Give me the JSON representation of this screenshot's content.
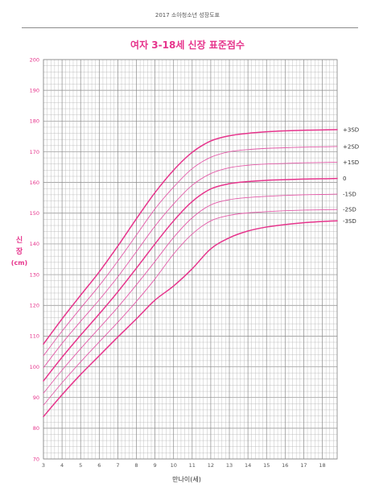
{
  "header": {
    "doc_title": "2017 소아청소년 성장도표"
  },
  "colors": {
    "accent": "#e6348c",
    "line_light": "#e35aa8",
    "grid": "#b4b4b4",
    "grid_major": "#8a8a8a",
    "axis_text": "#555555"
  },
  "chart_data": {
    "type": "line",
    "title": "여자 3-18세 신장 표준점수",
    "xlabel": "만나이(세)",
    "ylabel": "신장 (cm)",
    "ylabel_lines": [
      "신",
      "장",
      "(cm)"
    ],
    "xlim": [
      3,
      18.8
    ],
    "ylim": [
      70,
      200
    ],
    "xticks": [
      3,
      4,
      5,
      6,
      7,
      8,
      9,
      10,
      11,
      12,
      13,
      14,
      15,
      16,
      17,
      18
    ],
    "yticks": [
      70,
      80,
      90,
      100,
      110,
      120,
      130,
      140,
      150,
      160,
      170,
      180,
      190,
      200
    ],
    "grid": true,
    "series": [
      {
        "name": "+3SD",
        "emphasis": true,
        "x": [
          3,
          4,
          5,
          6,
          7,
          8,
          9,
          10,
          11,
          12,
          13,
          14,
          15,
          16,
          17,
          18,
          18.8
        ],
        "values": [
          107.4,
          115.6,
          123.3,
          130.9,
          139.3,
          148.2,
          156.7,
          164.0,
          169.8,
          173.5,
          175.2,
          176.0,
          176.5,
          176.8,
          177.0,
          177.1,
          177.2
        ]
      },
      {
        "name": "+2SD",
        "emphasis": false,
        "x": [
          3,
          4,
          5,
          6,
          7,
          8,
          9,
          10,
          11,
          12,
          13,
          14,
          15,
          16,
          17,
          18,
          18.8
        ],
        "values": [
          103.6,
          111.6,
          119.1,
          126.4,
          134.4,
          142.9,
          151.4,
          158.5,
          164.5,
          168.2,
          170.0,
          170.7,
          171.1,
          171.3,
          171.5,
          171.6,
          171.7
        ]
      },
      {
        "name": "+1SD",
        "emphasis": false,
        "x": [
          3,
          4,
          5,
          6,
          7,
          8,
          9,
          10,
          11,
          12,
          13,
          14,
          15,
          16,
          17,
          18,
          18.8
        ],
        "values": [
          99.7,
          107.6,
          114.8,
          121.8,
          129.3,
          137.5,
          145.8,
          153.0,
          159.1,
          162.9,
          164.8,
          165.6,
          166.0,
          166.2,
          166.4,
          166.5,
          166.6
        ]
      },
      {
        "name": "0",
        "emphasis": true,
        "x": [
          3,
          4,
          5,
          6,
          7,
          8,
          9,
          10,
          11,
          12,
          13,
          14,
          15,
          16,
          17,
          18,
          18.8
        ],
        "values": [
          95.4,
          103.1,
          110.3,
          117.2,
          124.4,
          132.1,
          140.0,
          147.5,
          153.8,
          157.9,
          159.6,
          160.3,
          160.7,
          160.9,
          161.1,
          161.2,
          161.3
        ]
      },
      {
        "name": "-1SD",
        "emphasis": false,
        "x": [
          3,
          4,
          5,
          6,
          7,
          8,
          9,
          10,
          11,
          12,
          13,
          14,
          15,
          16,
          17,
          18,
          18.8
        ],
        "values": [
          91.4,
          98.9,
          105.9,
          112.6,
          119.4,
          126.7,
          134.3,
          142.1,
          148.5,
          152.7,
          154.4,
          155.1,
          155.5,
          155.8,
          156.0,
          156.1,
          156.2
        ]
      },
      {
        "name": "-2SD",
        "emphasis": false,
        "x": [
          3,
          4,
          5,
          6,
          7,
          8,
          9,
          10,
          11,
          12,
          13,
          14,
          15,
          16,
          17,
          18,
          18.8
        ],
        "values": [
          87.5,
          94.8,
          101.6,
          108.1,
          114.5,
          121.3,
          128.6,
          136.7,
          143.2,
          147.5,
          149.3,
          150.1,
          150.5,
          150.8,
          151.0,
          151.1,
          151.2
        ]
      },
      {
        "name": "-3SD",
        "emphasis": true,
        "x": [
          3,
          4,
          5,
          6,
          7,
          8,
          9,
          10,
          11,
          12,
          13,
          14,
          15,
          16,
          17,
          18,
          18.8
        ],
        "values": [
          83.8,
          90.9,
          97.5,
          103.6,
          109.7,
          115.6,
          121.7,
          126.3,
          131.9,
          138.4,
          142.0,
          144.2,
          145.5,
          146.3,
          146.9,
          147.3,
          147.5
        ]
      }
    ],
    "sd_labels": [
      "+3SD",
      "+2SD",
      "+1SD",
      "0",
      "-1SD",
      "-2SD",
      "-3SD"
    ]
  }
}
